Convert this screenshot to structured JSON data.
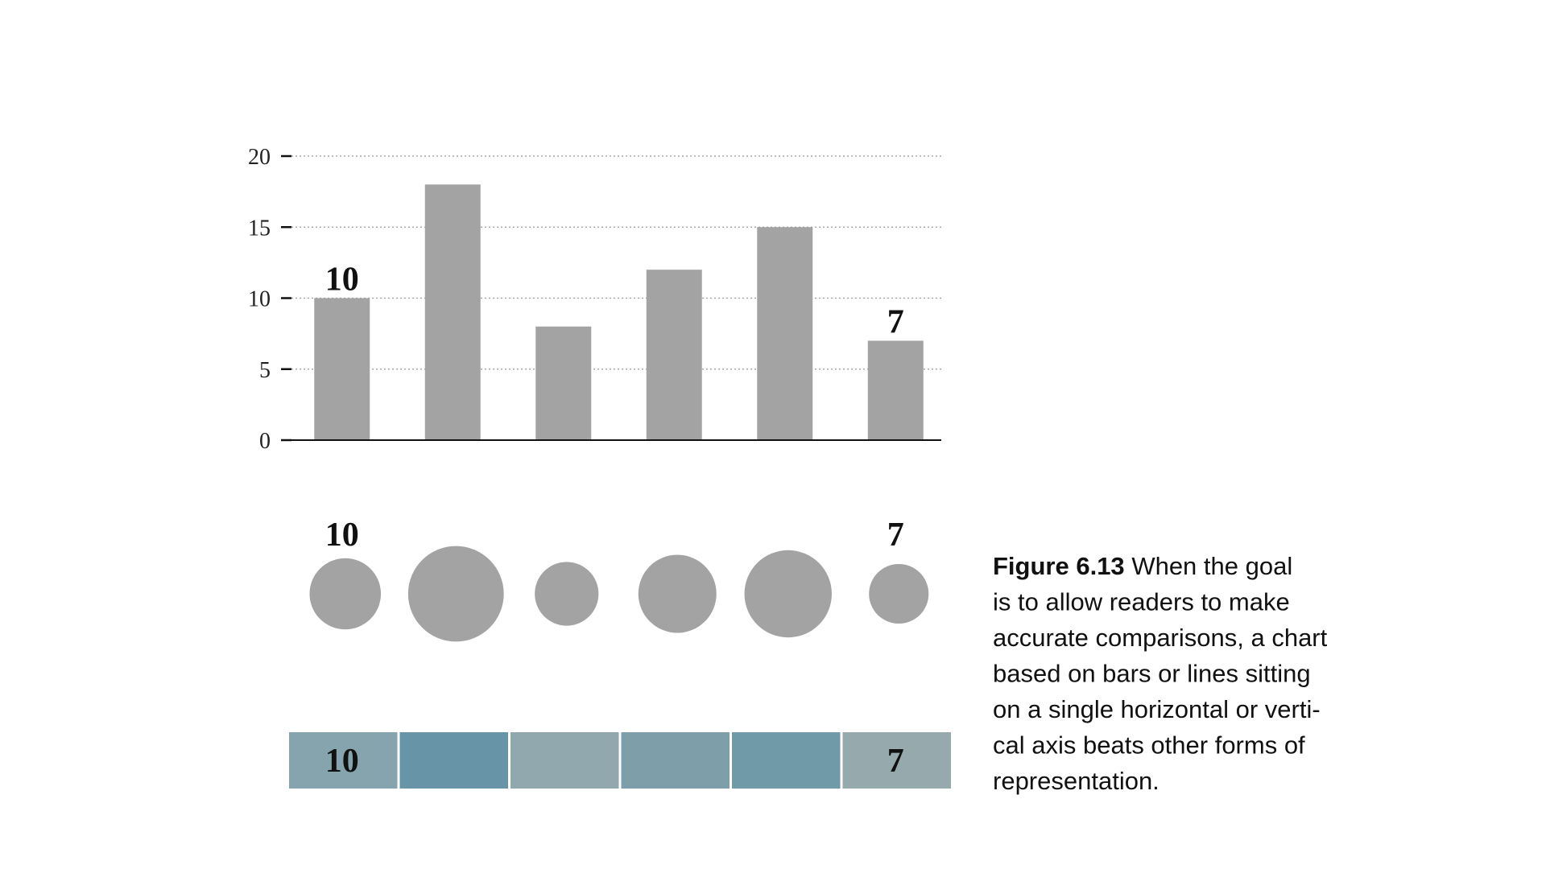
{
  "chart_data": [
    {
      "type": "bar",
      "values": [
        10,
        18,
        8,
        12,
        15,
        7
      ],
      "labeled": [
        0,
        5
      ],
      "color": "#a3a3a3",
      "ylim": [
        0,
        20
      ],
      "yticks": [
        0,
        5,
        10,
        15,
        20
      ],
      "grid": true
    },
    {
      "type": "bubble",
      "values": [
        10,
        18,
        8,
        12,
        15,
        7
      ],
      "labeled": [
        0,
        5
      ],
      "color": "#a3a3a3"
    },
    {
      "type": "heat",
      "values": [
        10,
        18,
        8,
        12,
        15,
        7
      ],
      "labeled": [
        0,
        5
      ],
      "colors": [
        "#86a4ad",
        "#6794a7",
        "#91a8ae",
        "#7e9ea9",
        "#719aa8",
        "#96aaae"
      ]
    }
  ],
  "caption": {
    "label": "Figure 6.13",
    "lines": [
      "When the goal",
      "is to allow readers to make",
      "accurate comparisons, a chart",
      "based on bars or lines sitting",
      "on a single horizontal or verti-",
      "cal axis beats other forms of",
      "representation."
    ]
  }
}
